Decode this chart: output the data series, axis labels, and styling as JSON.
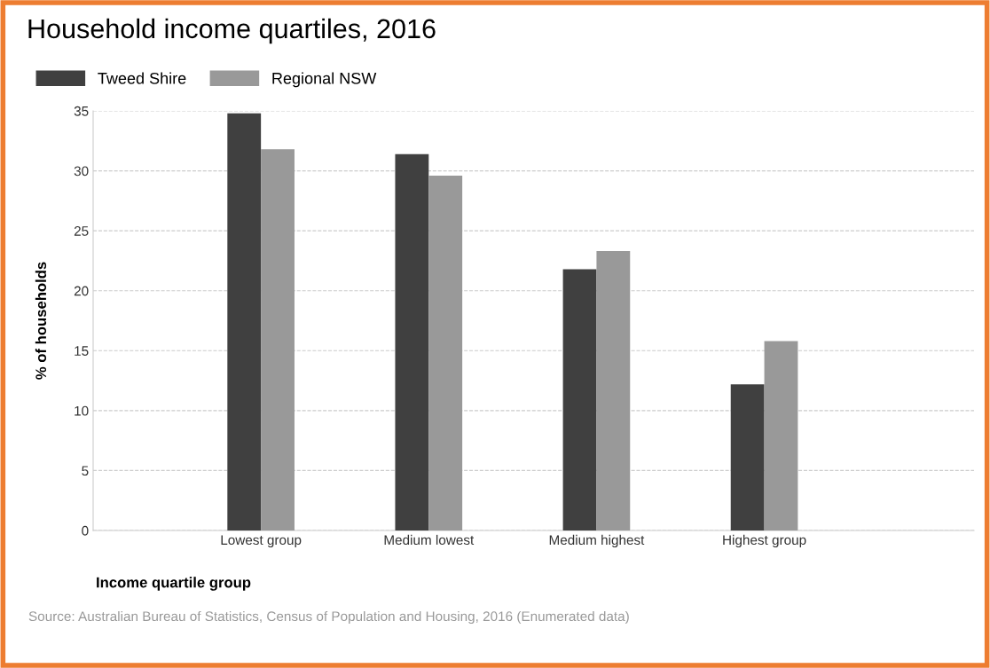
{
  "chart_data": {
    "type": "bar",
    "title": "Household income quartiles, 2016",
    "xlabel": "Income quartile group",
    "ylabel": "% of households",
    "categories": [
      "Lowest group",
      "Medium lowest",
      "Medium highest",
      "Highest group"
    ],
    "series": [
      {
        "name": "Tweed Shire",
        "color": "#404040",
        "values": [
          34.8,
          31.4,
          21.8,
          12.2
        ]
      },
      {
        "name": "Regional NSW",
        "color": "#999999",
        "values": [
          31.8,
          29.6,
          23.3,
          15.8
        ]
      }
    ],
    "ylim": [
      0,
      35
    ],
    "yticks": [
      0,
      5,
      10,
      15,
      20,
      25,
      30,
      35
    ],
    "grid": "y",
    "legend": "top left",
    "annotations": [
      "Source: Australian Bureau of Statistics, Census of Population and Housing, 2016 (Enumerated data)"
    ]
  }
}
